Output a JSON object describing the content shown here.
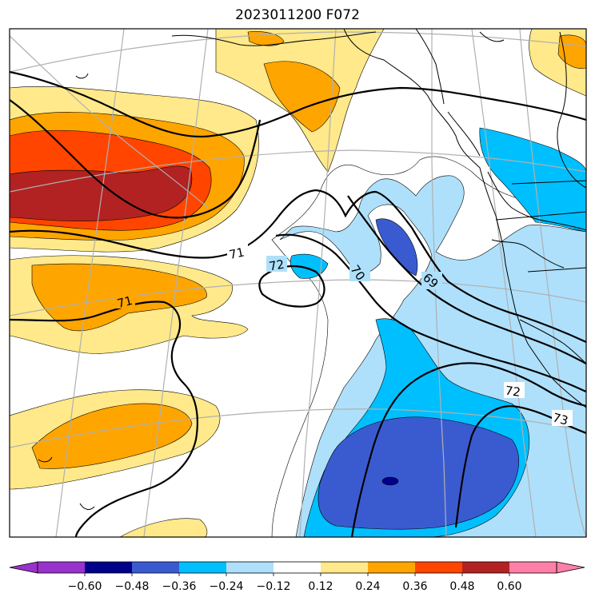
{
  "title": "2023011200 F072",
  "colors": {
    "c_-0.72": "#9932cc",
    "c_-0.60": "#00008b",
    "c_-0.48": "#3a5bd0",
    "c_-0.36": "#00bfff",
    "c_-0.24": "#aee0fb",
    "c_-0.12": "#ffffff",
    "c_0.12": "#ffe98a",
    "c_0.24": "#ffa500",
    "c_0.36": "#ff4500",
    "c_0.48": "#b22222",
    "c_0.60": "#ff7fa8"
  },
  "colorbar": {
    "ticks": [
      "−0.60",
      "−0.48",
      "−0.36",
      "−0.24",
      "−0.12",
      "0.12",
      "0.24",
      "0.36",
      "0.48",
      "0.60"
    ]
  },
  "contour_labels": [
    "71",
    "72",
    "70",
    "69",
    "71",
    "72",
    "73"
  ]
}
